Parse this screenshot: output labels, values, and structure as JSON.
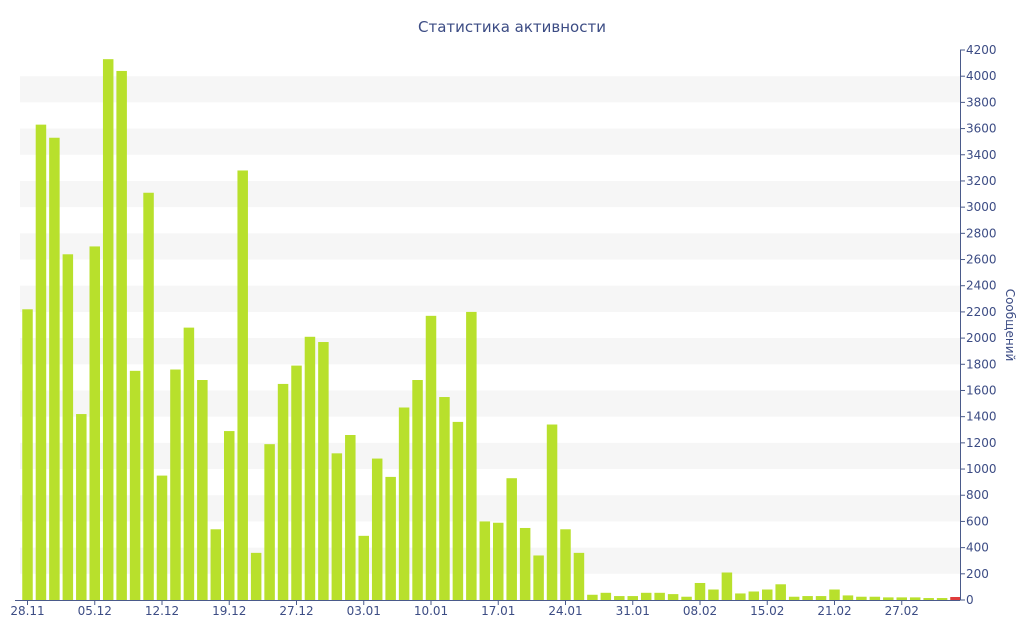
{
  "chart_data": {
    "type": "bar",
    "title": "Статистика активности",
    "ylabel": "Сообщений",
    "xlabel": "",
    "ylim": [
      0,
      4200
    ],
    "yticks": [
      0,
      200,
      400,
      600,
      800,
      1000,
      1200,
      1400,
      1600,
      1800,
      2000,
      2200,
      2400,
      2600,
      2800,
      3000,
      3200,
      3400,
      3600,
      3800,
      4000,
      4200
    ],
    "x_tick_labels": [
      "28.11",
      "05.12",
      "12.12",
      "19.12",
      "27.12",
      "03.01",
      "10.01",
      "17.01",
      "24.01",
      "31.01",
      "08.02",
      "15.02",
      "21.02",
      "27.02"
    ],
    "x_tick_positions": [
      0,
      5,
      10,
      15,
      20,
      25,
      30,
      35,
      40,
      45,
      50,
      55,
      60,
      65
    ],
    "y_axis_position": "right",
    "grid": "alternating horizontal bands",
    "legend": "none",
    "bar_color": "#b8e02c",
    "highlight_color": "#e03c3c",
    "values": [
      2220,
      3630,
      3530,
      2640,
      1420,
      2700,
      4130,
      4040,
      1750,
      3110,
      950,
      1760,
      2080,
      1680,
      540,
      1290,
      3280,
      360,
      1190,
      1650,
      1790,
      2010,
      1970,
      1120,
      1260,
      490,
      1080,
      940,
      1470,
      1680,
      2170,
      1550,
      1360,
      2200,
      600,
      590,
      930,
      550,
      340,
      1340,
      540,
      360,
      40,
      55,
      30,
      30,
      55,
      55,
      45,
      25,
      130,
      80,
      210,
      50,
      65,
      80,
      120,
      25,
      30,
      30,
      80,
      35,
      25,
      25,
      20,
      20,
      20,
      15,
      15,
      20
    ],
    "highlight_last": true
  }
}
